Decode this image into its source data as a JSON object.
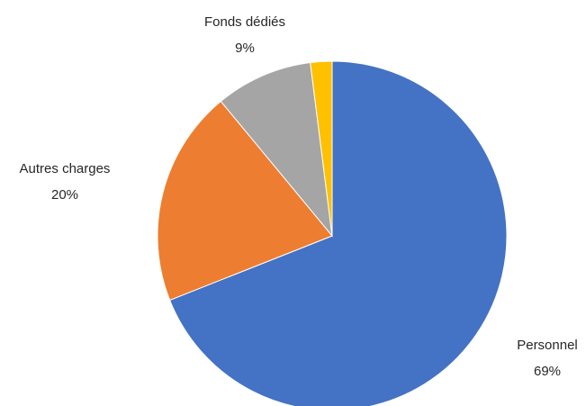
{
  "chart_data": {
    "type": "pie",
    "start": "12 o'clock",
    "direction": "clockwise",
    "legend": "none",
    "slices": [
      {
        "label": "Personnel",
        "value": 69,
        "value_label": "69%",
        "color": "#4472C4"
      },
      {
        "label": "Autres charges",
        "value": 20,
        "value_label": "20%",
        "color": "#ED7D31"
      },
      {
        "label": "Fonds dédiés",
        "value": 9,
        "value_label": "9%",
        "color": "#A5A5A5"
      },
      {
        "label": "",
        "value": 2,
        "value_label": "",
        "color": "#FFC000"
      }
    ]
  }
}
